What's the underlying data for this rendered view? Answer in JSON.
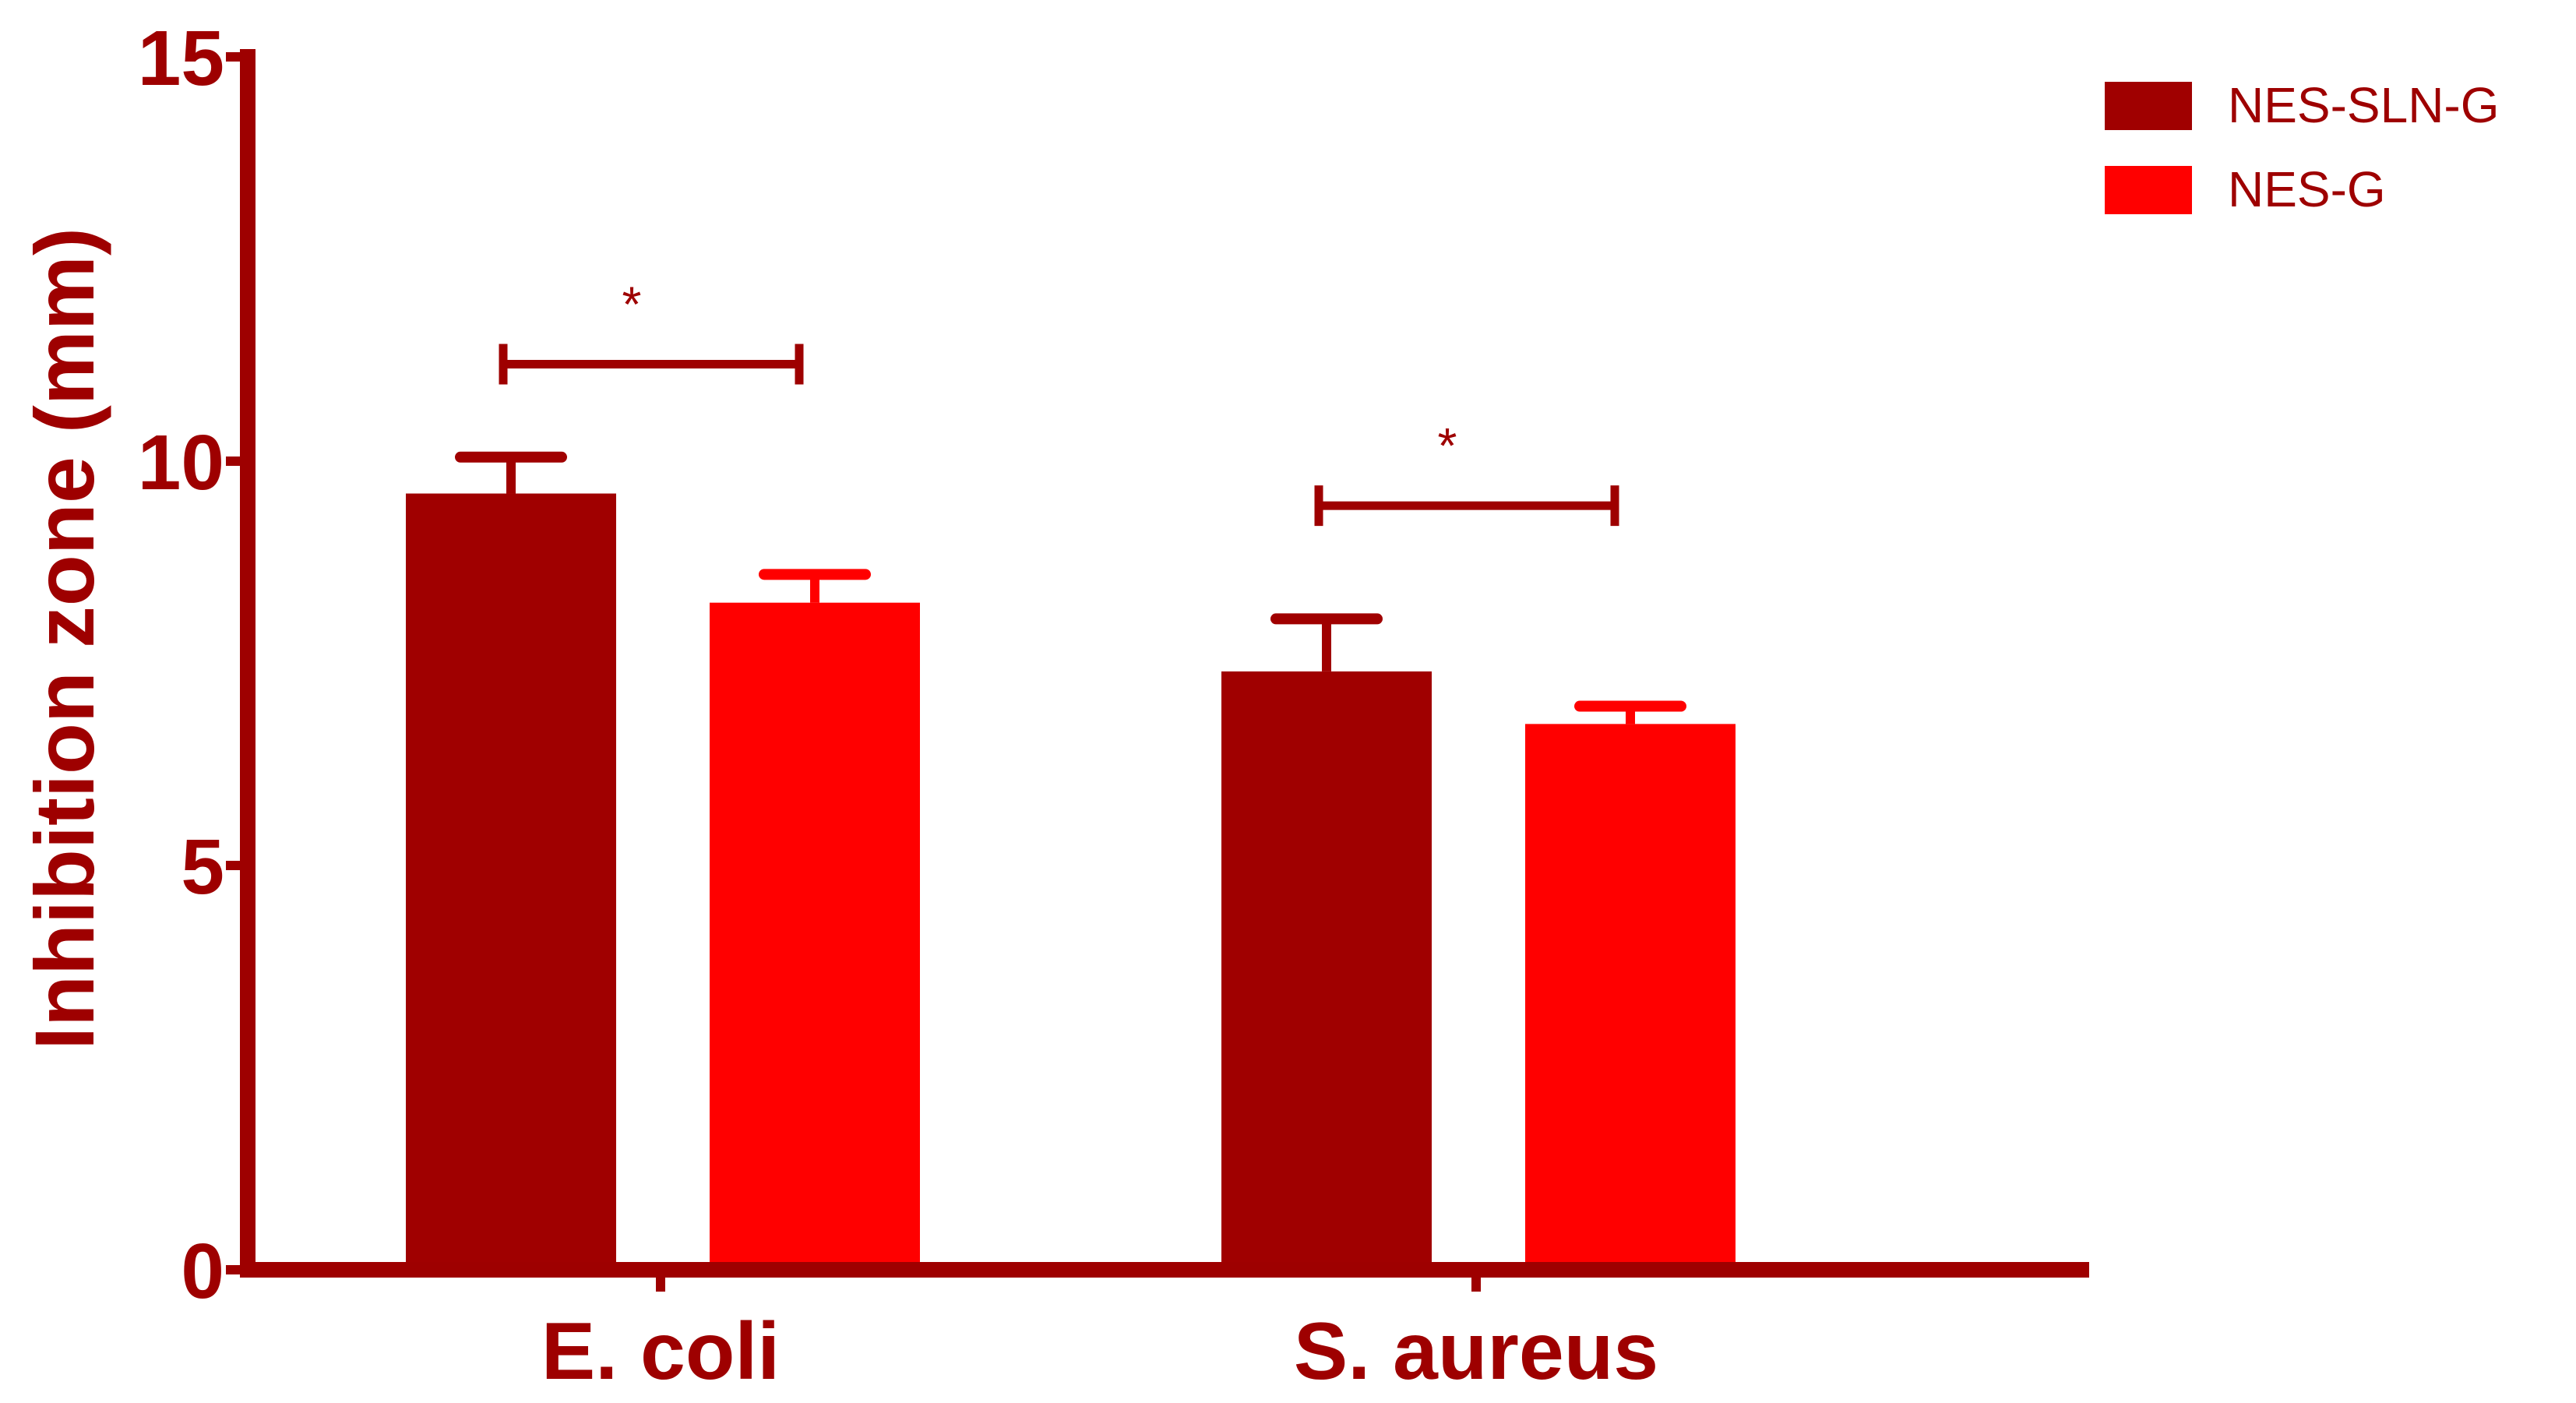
{
  "colors": {
    "axis": "#9e0000",
    "series_dark": "#a00000",
    "series_bright": "#ff0000"
  },
  "chart_data": {
    "type": "bar",
    "categories": [
      "E. coli",
      "S. aureus"
    ],
    "series": [
      {
        "name": "NES-SLN-G",
        "values": [
          9.6,
          7.4
        ],
        "errors": [
          0.45,
          0.65
        ],
        "color": "#a00000"
      },
      {
        "name": "NES-G",
        "values": [
          8.25,
          6.75
        ],
        "errors": [
          0.35,
          0.22
        ],
        "color": "#ff0000"
      }
    ],
    "title": "",
    "xlabel": "",
    "ylabel": "Inhibition zone (mm)",
    "ylim": [
      0,
      15
    ],
    "yticks": [
      "0",
      "5",
      "10",
      "15"
    ],
    "grid": false,
    "legend": "top-right",
    "annotations": [
      {
        "category": "E. coli",
        "label": "*",
        "y": 11.2
      },
      {
        "category": "S. aureus",
        "label": "*",
        "y": 9.45
      }
    ]
  }
}
